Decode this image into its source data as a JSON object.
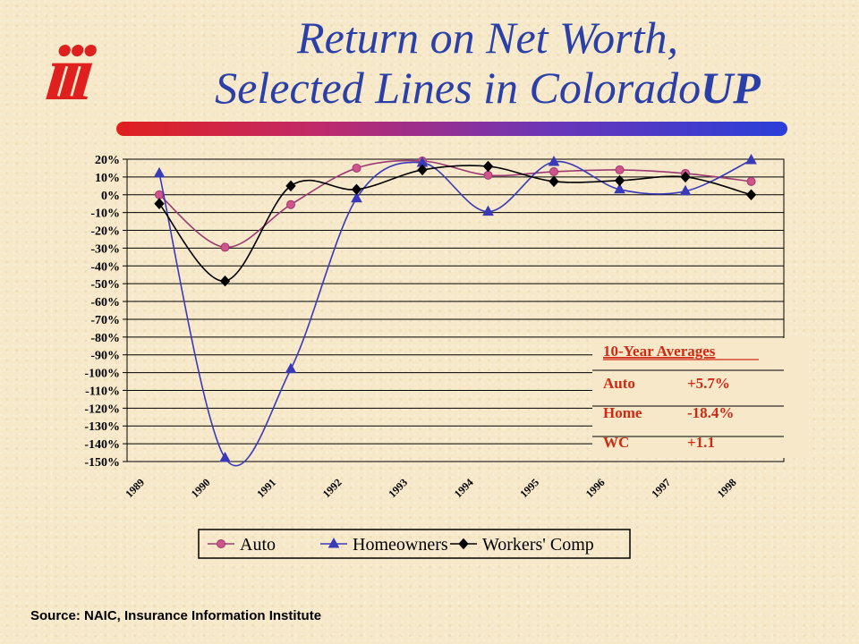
{
  "logo_text": "iii",
  "title": {
    "line1": "Return on Net Worth,",
    "line2_main": "Selected Lines in Colorado",
    "line2_suffix": "UP"
  },
  "source": "Source:  NAIC, Insurance Information Institute",
  "colors": {
    "auto": "#9b3a72",
    "auto_marker": "#d0538a",
    "homeowners": "#3a3ab8",
    "workers_comp": "#000000",
    "averages_text": "#d02a14"
  },
  "chart_data": {
    "type": "line",
    "categories": [
      "1989",
      "1990",
      "1991",
      "1992",
      "1993",
      "1994",
      "1995",
      "1996",
      "1997",
      "1998"
    ],
    "ylim": [
      -150,
      20
    ],
    "y_tick_step": 10,
    "y_tick_labels": [
      "20%",
      "10%",
      "0%",
      "-10%",
      "-20%",
      "-30%",
      "-40%",
      "-50%",
      "-60%",
      "-70%",
      "-80%",
      "-90%",
      "-100%",
      "-110%",
      "-120%",
      "-130%",
      "-140%",
      "-150%"
    ],
    "grid": true,
    "legend_position": "bottom",
    "series": [
      {
        "name": "Auto",
        "marker": "circle",
        "values": [
          0,
          -29.5,
          -5.5,
          15,
          19,
          11,
          13,
          14,
          12,
          7.5
        ]
      },
      {
        "name": "Homeowners",
        "marker": "triangle",
        "values": [
          12,
          -148,
          -98,
          -2,
          18,
          -9.5,
          18.5,
          3,
          2,
          19.5
        ]
      },
      {
        "name": "Workers' Comp",
        "marker": "diamond",
        "values": [
          -5,
          -48.5,
          5,
          3,
          14,
          16,
          7.5,
          8,
          10,
          0
        ]
      }
    ],
    "averages_box": {
      "heading": "10-Year Averages",
      "rows": [
        {
          "label": "Auto",
          "value": "+5.7%"
        },
        {
          "label": "Home",
          "value": "-18.4%"
        },
        {
          "label": "WC",
          "value": "+1.1"
        }
      ]
    }
  }
}
